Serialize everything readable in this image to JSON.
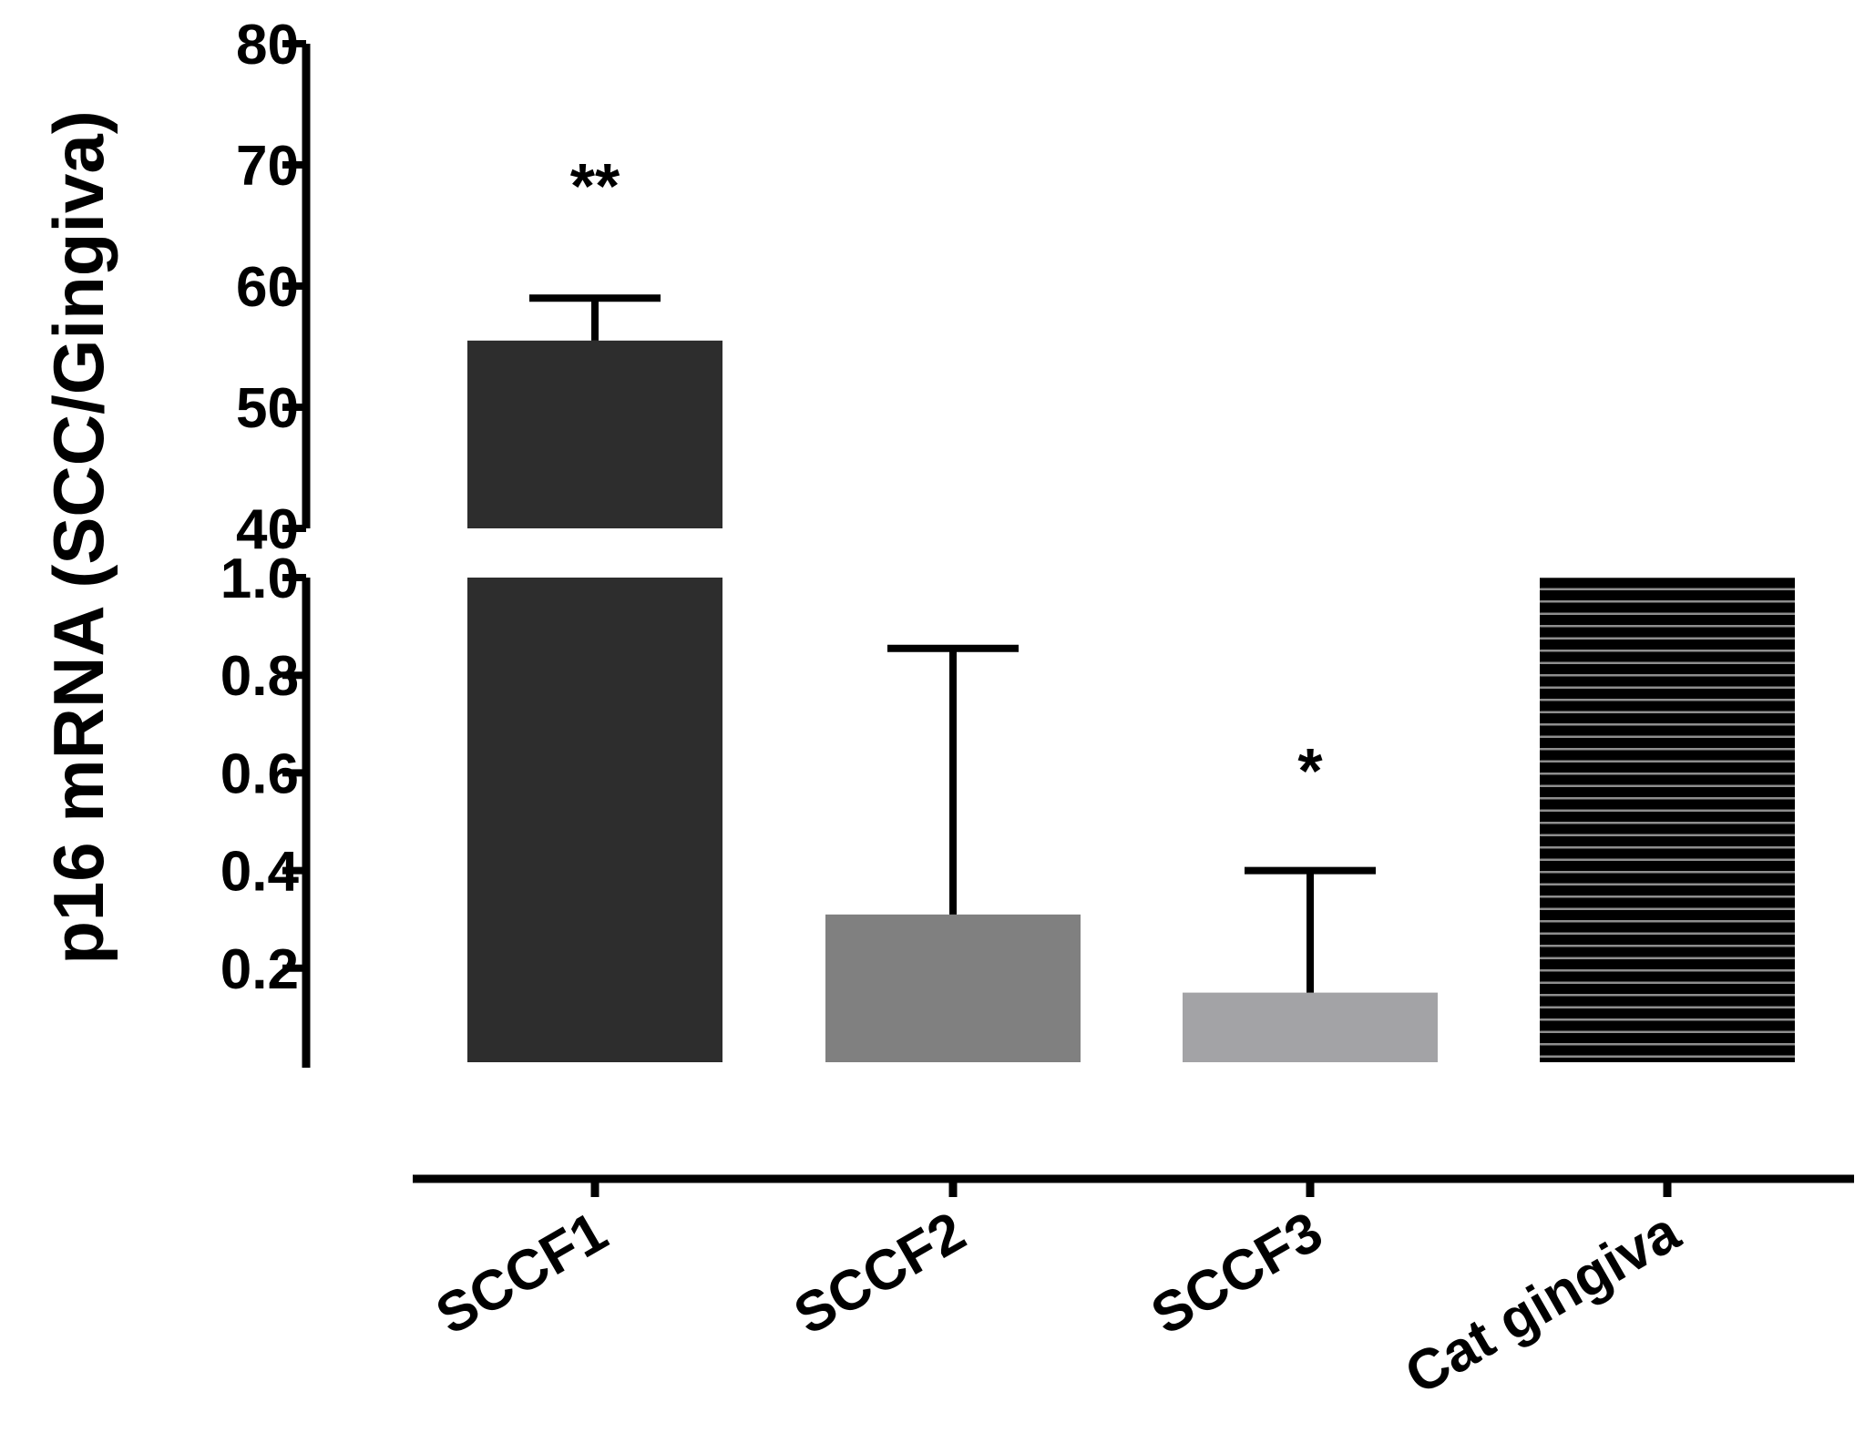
{
  "chart_data": {
    "type": "bar",
    "title": "",
    "xlabel": "",
    "ylabel": "p16 mRNA (SCC/Gingiva)",
    "axis_break": true,
    "lower_segment": {
      "ylim": [
        0,
        1.0
      ],
      "ticks": [
        0.2,
        0.4,
        0.6,
        0.8,
        1.0
      ],
      "tick_labels": [
        "0.2",
        "0.4",
        "0.6",
        "0.8",
        "1.0"
      ]
    },
    "upper_segment": {
      "ylim": [
        40,
        80
      ],
      "ticks": [
        40,
        50,
        60,
        70,
        80
      ],
      "tick_labels": [
        "40",
        "50",
        "60",
        "70",
        "80"
      ]
    },
    "categories": [
      "SCCF1",
      "SCCF2",
      "SCCF3",
      "Cat gingiva"
    ],
    "values": [
      55.5,
      0.31,
      0.15,
      1.0
    ],
    "error_upper": [
      59,
      0.855,
      0.4,
      null
    ],
    "annotations": [
      "**",
      "",
      "*",
      ""
    ],
    "colors": {
      "SCCF1": "#2d2d2d",
      "SCCF2": "#808080",
      "SCCF3": "#a3a3a6",
      "Cat gingiva": "#000000",
      "hatch_line": "#8e8e8e",
      "axis": "#000000"
    },
    "fills": [
      "solid",
      "solid",
      "solid",
      "horizontal-stripes"
    ],
    "grid": false,
    "legend": "none"
  }
}
